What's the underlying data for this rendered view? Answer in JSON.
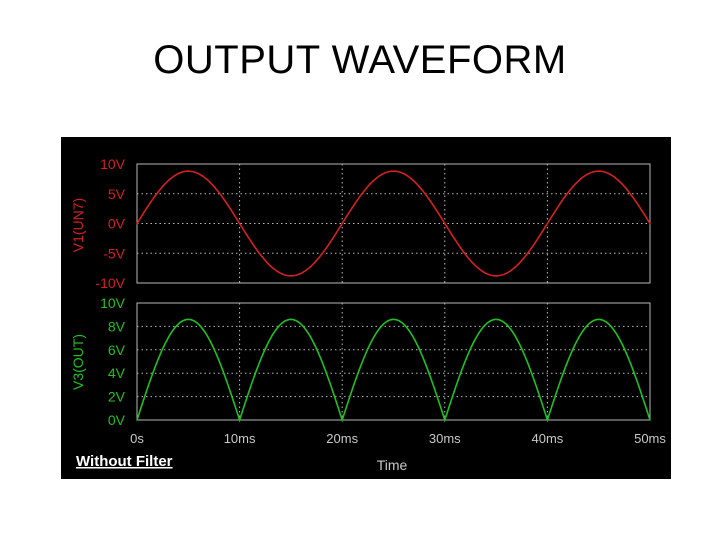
{
  "page": {
    "title": "OUTPUT WAVEFORM"
  },
  "scope": {
    "caption": "Without Filter",
    "xlabel": "Time",
    "x_ticks": [
      "0s",
      "10ms",
      "20ms",
      "30ms",
      "40ms",
      "50ms"
    ]
  },
  "colors": {
    "input": "#d42020",
    "output": "#20c020",
    "grid": "#b8b8b8",
    "axis_text": "#c8c8c8",
    "background": "#000000"
  },
  "chart_data": [
    {
      "type": "line",
      "ylabel": "V1(UN7)",
      "y_ticks": [
        "10V",
        "5V",
        "0V",
        "-5V",
        "-10V"
      ],
      "ylim": [
        -10,
        10
      ],
      "xlim": [
        0,
        50
      ],
      "x_unit": "ms",
      "series": [
        {
          "name": "V1(UN7)",
          "color": "#d42020",
          "x": [
            0,
            2.5,
            5,
            7.5,
            10,
            12.5,
            15,
            17.5,
            20,
            22.5,
            25,
            27.5,
            30,
            32.5,
            35,
            37.5,
            40,
            42.5,
            45,
            47.5,
            50
          ],
          "y": [
            0,
            6.2,
            8.8,
            6.2,
            0,
            -6.2,
            -8.8,
            -6.2,
            0,
            6.2,
            8.8,
            6.2,
            0,
            -6.2,
            -8.8,
            -6.2,
            0,
            6.2,
            8.8,
            6.2,
            0
          ]
        }
      ]
    },
    {
      "type": "line",
      "ylabel": "V3(OUT)",
      "y_ticks": [
        "10V",
        "8V",
        "6V",
        "4V",
        "2V",
        "0V"
      ],
      "ylim": [
        0,
        10
      ],
      "xlim": [
        0,
        50
      ],
      "x_unit": "ms",
      "series": [
        {
          "name": "V3(OUT)",
          "color": "#20c020",
          "x": [
            0,
            2.5,
            5,
            7.5,
            10,
            12.5,
            15,
            17.5,
            20,
            22.5,
            25,
            27.5,
            30,
            32.5,
            35,
            37.5,
            40,
            42.5,
            45,
            47.5,
            50
          ],
          "y": [
            0,
            6.1,
            8.6,
            6.1,
            0,
            6.1,
            8.6,
            6.1,
            0,
            6.1,
            8.6,
            6.1,
            0,
            6.1,
            8.6,
            6.1,
            0,
            6.1,
            8.6,
            6.1,
            0
          ]
        }
      ]
    }
  ]
}
